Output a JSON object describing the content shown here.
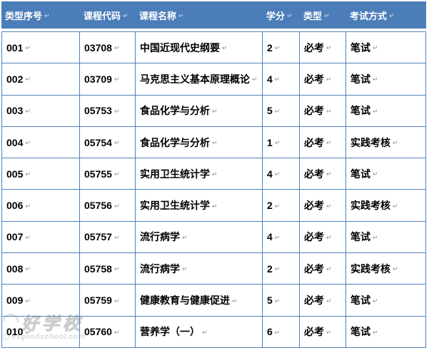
{
  "table": {
    "headers": [
      {
        "key": "type_no",
        "label": "类型序号"
      },
      {
        "key": "course_code",
        "label": "课程代码"
      },
      {
        "key": "course_name",
        "label": "课程名称"
      },
      {
        "key": "credits",
        "label": "学分"
      },
      {
        "key": "type",
        "label": "类型"
      },
      {
        "key": "exam_method",
        "label": "考试方式"
      }
    ],
    "rows": [
      [
        "001",
        "03708",
        "中国近现代史纲要",
        "2",
        "必考",
        "笔试"
      ],
      [
        "002",
        "03709",
        "马克思主义基本原理概论",
        "4",
        "必考",
        "笔试"
      ],
      [
        "003",
        "05753",
        "食品化学与分析",
        "5",
        "必考",
        "笔试"
      ],
      [
        "004",
        "05754",
        "食品化学与分析",
        "1",
        "必考",
        "实践考核"
      ],
      [
        "005",
        "05755",
        "实用卫生统计学",
        "4",
        "必考",
        "笔试"
      ],
      [
        "006",
        "05756",
        "实用卫生统计学",
        "2",
        "必考",
        "实践考核"
      ],
      [
        "007",
        "05757",
        "流行病学",
        "4",
        "必考",
        "笔试"
      ],
      [
        "008",
        "05758",
        "流行病学",
        "2",
        "必考",
        "实践考核"
      ],
      [
        "009",
        "05759",
        "健康教育与健康促进",
        "5",
        "必考",
        "笔试"
      ],
      [
        "010",
        "05760",
        "营养学（一）",
        "6",
        "必考",
        "笔试"
      ]
    ],
    "return_mark": "↵"
  },
  "watermark": {
    "brand": "好学校",
    "url": "91goodschool.com"
  },
  "colors": {
    "header_bg": "#4b7db9",
    "border": "#4f81bd",
    "header_text": "#ffffff",
    "body_text": "#000000",
    "ret_mark": "#8f8f8f",
    "watermark": "#d6d6d6"
  }
}
